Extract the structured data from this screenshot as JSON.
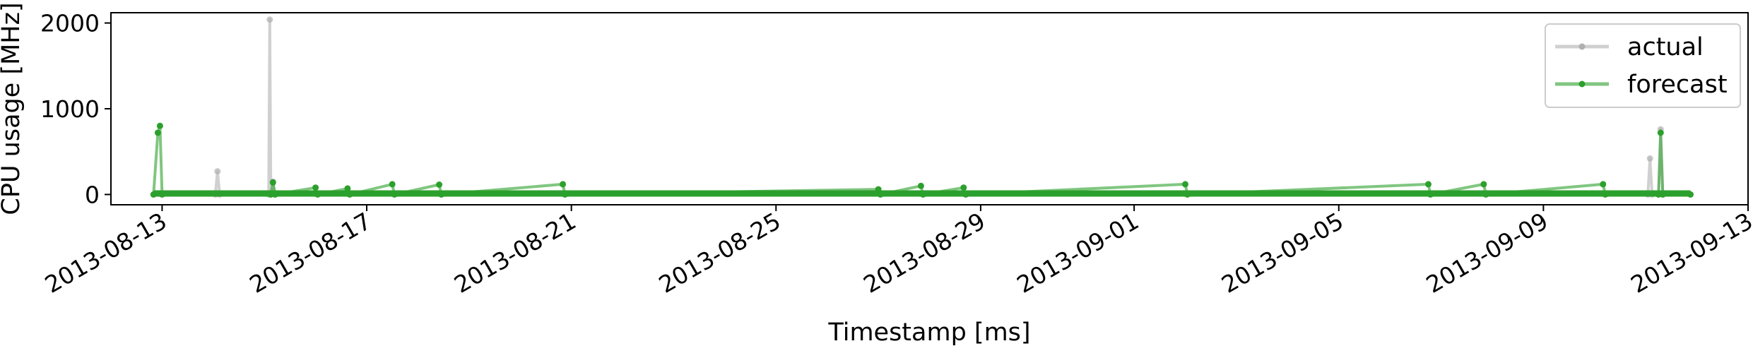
{
  "chart_data": {
    "type": "line",
    "title": "",
    "xlabel": "Timestamp [ms]",
    "ylabel": "CPU usage [MHz]",
    "x_type": "date",
    "xlim": [
      "2013-08-12",
      "2013-09-13"
    ],
    "ylim": [
      -120,
      2120
    ],
    "x_ticks": [
      "2013-08-13",
      "2013-08-17",
      "2013-08-21",
      "2013-08-25",
      "2013-08-29",
      "2013-09-01",
      "2013-09-05",
      "2013-09-09",
      "2013-09-13"
    ],
    "y_ticks": [
      0,
      1000,
      2000
    ],
    "grid": false,
    "legend_position": "top-right",
    "series": [
      {
        "name": "actual",
        "color": "#b0b0b0",
        "points": [
          [
            "2013-08-12T20:00",
            0
          ],
          [
            "2013-08-14T01:00",
            0
          ],
          [
            "2013-08-14T02:00",
            270
          ],
          [
            "2013-08-14T03:00",
            0
          ],
          [
            "2013-08-15T02:00",
            0
          ],
          [
            "2013-08-15T02:30",
            2040
          ],
          [
            "2013-08-15T03:00",
            0
          ],
          [
            "2013-08-15T04:00",
            150
          ],
          [
            "2013-08-15T05:00",
            0
          ],
          [
            "2013-09-11T01:00",
            0
          ],
          [
            "2013-09-11T02:00",
            420
          ],
          [
            "2013-09-11T03:00",
            0
          ],
          [
            "2013-09-11T06:00",
            0
          ],
          [
            "2013-09-11T07:00",
            760
          ],
          [
            "2013-09-11T08:00",
            0
          ],
          [
            "2013-09-11T21:00",
            0
          ]
        ]
      },
      {
        "name": "forecast",
        "color": "#2ca02c",
        "points": [
          [
            "2013-08-12T20:00",
            0
          ],
          [
            "2013-08-12T22:00",
            720
          ],
          [
            "2013-08-12T23:00",
            800
          ],
          [
            "2013-08-13T00:00",
            0
          ],
          [
            "2013-08-15T03:00",
            0
          ],
          [
            "2013-08-15T04:00",
            140
          ],
          [
            "2013-08-15T05:00",
            0
          ],
          [
            "2013-08-16T00:00",
            80
          ],
          [
            "2013-08-16T01:00",
            0
          ],
          [
            "2013-08-16T15:00",
            70
          ],
          [
            "2013-08-16T16:00",
            0
          ],
          [
            "2013-08-17T12:00",
            120
          ],
          [
            "2013-08-17T13:00",
            0
          ],
          [
            "2013-08-18T10:00",
            115
          ],
          [
            "2013-08-18T11:00",
            0
          ],
          [
            "2013-08-20T20:00",
            120
          ],
          [
            "2013-08-20T21:00",
            0
          ],
          [
            "2013-08-27T00:00",
            60
          ],
          [
            "2013-08-27T01:00",
            0
          ],
          [
            "2013-08-27T20:00",
            100
          ],
          [
            "2013-08-27T21:00",
            0
          ],
          [
            "2013-08-28T16:00",
            80
          ],
          [
            "2013-08-28T17:00",
            0
          ],
          [
            "2013-09-02T00:00",
            120
          ],
          [
            "2013-09-02T01:00",
            0
          ],
          [
            "2013-09-06T18:00",
            120
          ],
          [
            "2013-09-06T19:00",
            0
          ],
          [
            "2013-09-07T20:00",
            120
          ],
          [
            "2013-09-07T21:00",
            0
          ],
          [
            "2013-09-10T04:00",
            120
          ],
          [
            "2013-09-10T05:00",
            0
          ],
          [
            "2013-09-11T06:00",
            0
          ],
          [
            "2013-09-11T07:00",
            720
          ],
          [
            "2013-09-11T08:00",
            0
          ],
          [
            "2013-09-11T21:00",
            0
          ]
        ]
      }
    ]
  }
}
